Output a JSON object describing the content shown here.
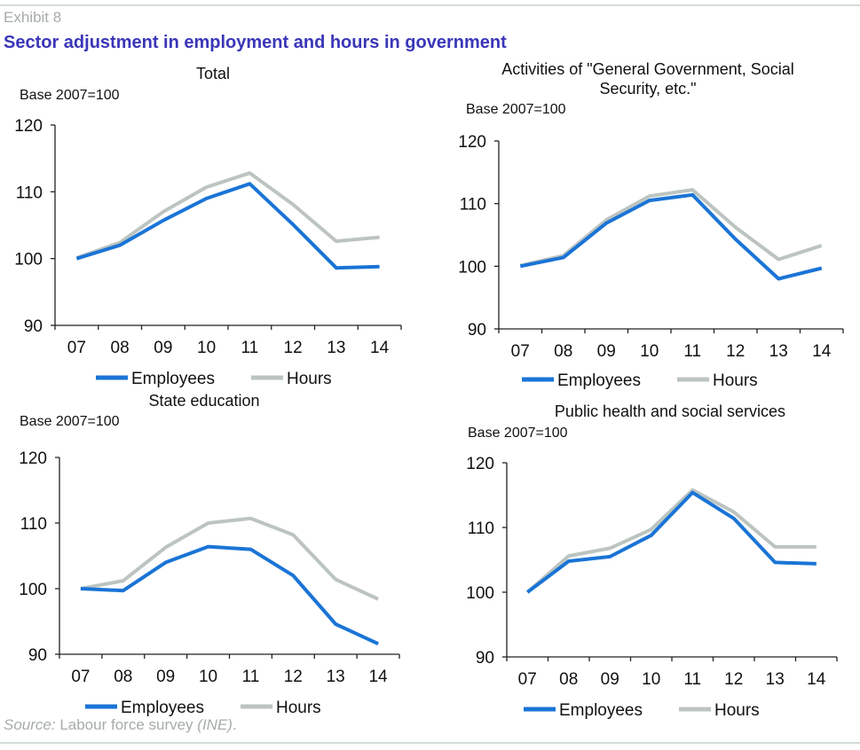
{
  "header": {
    "exhibit": "Exhibit 8",
    "title": "Sector adjustment in employment and hours in government"
  },
  "footer": {
    "source_label": "Source:",
    "source_text": " Labour force survey ",
    "source_org": "(INE)",
    "source_end": "."
  },
  "colors": {
    "employees": "#1a74d6",
    "hours": "#bcc4c0",
    "axis": "#222222",
    "title": "#3a36b8",
    "muted": "#a5aca9"
  },
  "chart_data": [
    {
      "type": "line",
      "title": "Total",
      "ylabel": "Base 2007=100",
      "xlabel": "",
      "categories": [
        "07",
        "08",
        "09",
        "10",
        "11",
        "12",
        "13",
        "14"
      ],
      "ylim": [
        90,
        120
      ],
      "yticks": [
        90,
        100,
        110,
        120
      ],
      "grid": false,
      "legend": "bottom",
      "series": [
        {
          "name": "Employees",
          "values": [
            100.0,
            102.0,
            105.7,
            109.0,
            111.2,
            105.1,
            98.6,
            98.8
          ]
        },
        {
          "name": "Hours",
          "values": [
            100.1,
            102.4,
            107.0,
            110.7,
            112.8,
            108.1,
            102.6,
            103.2
          ]
        }
      ]
    },
    {
      "type": "line",
      "title": "Activities of \"General Government, Social Security, etc.\"",
      "ylabel": "Base 2007=100",
      "xlabel": "",
      "categories": [
        "07",
        "08",
        "09",
        "10",
        "11",
        "12",
        "13",
        "14"
      ],
      "ylim": [
        90,
        120
      ],
      "yticks": [
        90,
        100,
        110,
        120
      ],
      "grid": false,
      "legend": "bottom",
      "series": [
        {
          "name": "Employees",
          "values": [
            100.0,
            101.4,
            106.9,
            110.5,
            111.4,
            104.3,
            98.0,
            99.7
          ]
        },
        {
          "name": "Hours",
          "values": [
            100.1,
            101.7,
            107.4,
            111.2,
            112.2,
            106.2,
            101.1,
            103.3
          ]
        }
      ]
    },
    {
      "type": "line",
      "title": "State education",
      "ylabel": "Base 2007=100",
      "xlabel": "",
      "categories": [
        "07",
        "08",
        "09",
        "10",
        "11",
        "12",
        "13",
        "14"
      ],
      "ylim": [
        90,
        120
      ],
      "yticks": [
        90,
        100,
        110,
        120
      ],
      "grid": false,
      "legend": "bottom",
      "series": [
        {
          "name": "Employees",
          "values": [
            100.0,
            99.7,
            104.0,
            106.4,
            106.0,
            102.0,
            94.6,
            91.6
          ]
        },
        {
          "name": "Hours",
          "values": [
            100.0,
            101.2,
            106.3,
            110.0,
            110.7,
            108.2,
            101.4,
            98.4
          ]
        }
      ]
    },
    {
      "type": "line",
      "title": "Public health and social services",
      "ylabel": "Base 2007=100",
      "xlabel": "",
      "categories": [
        "07",
        "08",
        "09",
        "10",
        "11",
        "12",
        "13",
        "14"
      ],
      "ylim": [
        90,
        120
      ],
      "yticks": [
        90,
        100,
        110,
        120
      ],
      "grid": false,
      "legend": "bottom",
      "series": [
        {
          "name": "Employees",
          "values": [
            100.0,
            104.8,
            105.5,
            108.8,
            115.4,
            111.4,
            104.6,
            104.4
          ]
        },
        {
          "name": "Hours",
          "values": [
            100.0,
            105.6,
            106.8,
            109.7,
            115.8,
            112.4,
            107.0,
            107.0
          ]
        }
      ]
    }
  ]
}
